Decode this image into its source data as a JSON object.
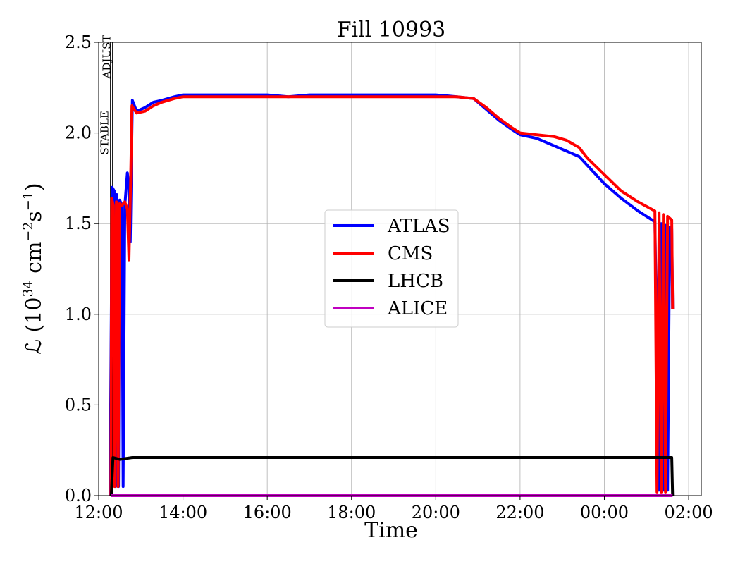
{
  "chart_data": {
    "type": "line",
    "title": "Fill 10993",
    "xlabel": "Time",
    "ylabel_main": "ℒ (10",
    "ylabel_exp1": "34",
    "ylabel_mid": " cm",
    "ylabel_exp2": "−2",
    "ylabel_mid2": "s",
    "ylabel_exp3": "−1",
    "ylabel_end": ")",
    "xlim_hours": [
      12.0,
      26.3
    ],
    "ylim": [
      0,
      2.5
    ],
    "x_ticks": [
      {
        "v": 12,
        "label": "12:00"
      },
      {
        "v": 14,
        "label": "14:00"
      },
      {
        "v": 16,
        "label": "16:00"
      },
      {
        "v": 18,
        "label": "18:00"
      },
      {
        "v": 20,
        "label": "20:00"
      },
      {
        "v": 22,
        "label": "22:00"
      },
      {
        "v": 24,
        "label": "00:00"
      },
      {
        "v": 26,
        "label": "02:00"
      }
    ],
    "y_ticks": [
      {
        "v": 0.0,
        "label": "0.0"
      },
      {
        "v": 0.5,
        "label": "0.5"
      },
      {
        "v": 1.0,
        "label": "1.0"
      },
      {
        "v": 1.5,
        "label": "1.5"
      },
      {
        "v": 2.0,
        "label": "2.0"
      },
      {
        "v": 2.5,
        "label": "2.5"
      }
    ],
    "grid": true,
    "legend_position": "center",
    "markers": [
      {
        "label": "ADJUST",
        "x": 12.33
      },
      {
        "label": "STABLE",
        "x": 12.28
      }
    ],
    "series": [
      {
        "name": "ATLAS",
        "color": "#0000ff",
        "points": [
          [
            12.27,
            0
          ],
          [
            12.3,
            1.0
          ],
          [
            12.32,
            1.7
          ],
          [
            12.37,
            1.68
          ],
          [
            12.4,
            0.05
          ],
          [
            12.43,
            1.66
          ],
          [
            12.47,
            0.05
          ],
          [
            12.5,
            1.63
          ],
          [
            12.55,
            1.6
          ],
          [
            12.58,
            0.05
          ],
          [
            12.62,
            1.6
          ],
          [
            12.68,
            1.78
          ],
          [
            12.72,
            1.7
          ],
          [
            12.75,
            1.4
          ],
          [
            12.8,
            2.18
          ],
          [
            12.9,
            2.12
          ],
          [
            13.1,
            2.14
          ],
          [
            13.3,
            2.17
          ],
          [
            13.5,
            2.18
          ],
          [
            13.8,
            2.2
          ],
          [
            14.0,
            2.21
          ],
          [
            14.5,
            2.21
          ],
          [
            15.0,
            2.21
          ],
          [
            15.5,
            2.21
          ],
          [
            16.0,
            2.21
          ],
          [
            16.5,
            2.2
          ],
          [
            17.0,
            2.21
          ],
          [
            17.5,
            2.21
          ],
          [
            18.0,
            2.21
          ],
          [
            18.5,
            2.21
          ],
          [
            19.0,
            2.21
          ],
          [
            19.5,
            2.21
          ],
          [
            20.0,
            2.21
          ],
          [
            20.5,
            2.2
          ],
          [
            20.9,
            2.19
          ],
          [
            21.2,
            2.13
          ],
          [
            21.5,
            2.07
          ],
          [
            21.8,
            2.02
          ],
          [
            22.0,
            1.99
          ],
          [
            22.4,
            1.97
          ],
          [
            22.8,
            1.93
          ],
          [
            23.1,
            1.9
          ],
          [
            23.4,
            1.87
          ],
          [
            23.6,
            1.82
          ],
          [
            24.0,
            1.72
          ],
          [
            24.4,
            1.64
          ],
          [
            24.8,
            1.57
          ],
          [
            25.2,
            1.51
          ],
          [
            25.3,
            0.03
          ],
          [
            25.35,
            1.5
          ],
          [
            25.4,
            0.03
          ],
          [
            25.45,
            1.49
          ],
          [
            25.5,
            0.03
          ],
          [
            25.55,
            1.48
          ],
          [
            25.6,
            1.47
          ],
          [
            25.62,
            1.03
          ]
        ]
      },
      {
        "name": "CMS",
        "color": "#ff0000",
        "points": [
          [
            12.29,
            0
          ],
          [
            12.31,
            1.64
          ],
          [
            12.35,
            1.6
          ],
          [
            12.38,
            0.05
          ],
          [
            12.42,
            1.62
          ],
          [
            12.46,
            0.05
          ],
          [
            12.5,
            1.61
          ],
          [
            12.55,
            1.6
          ],
          [
            12.62,
            1.62
          ],
          [
            12.68,
            1.58
          ],
          [
            12.72,
            1.3
          ],
          [
            12.76,
            1.75
          ],
          [
            12.79,
            2.15
          ],
          [
            12.9,
            2.11
          ],
          [
            13.1,
            2.12
          ],
          [
            13.3,
            2.15
          ],
          [
            13.5,
            2.17
          ],
          [
            13.8,
            2.19
          ],
          [
            14.0,
            2.2
          ],
          [
            14.5,
            2.2
          ],
          [
            15.0,
            2.2
          ],
          [
            15.5,
            2.2
          ],
          [
            16.0,
            2.2
          ],
          [
            16.5,
            2.2
          ],
          [
            17.0,
            2.2
          ],
          [
            17.5,
            2.2
          ],
          [
            18.0,
            2.2
          ],
          [
            18.5,
            2.2
          ],
          [
            19.0,
            2.2
          ],
          [
            19.5,
            2.2
          ],
          [
            20.0,
            2.2
          ],
          [
            20.5,
            2.2
          ],
          [
            20.9,
            2.19
          ],
          [
            21.2,
            2.14
          ],
          [
            21.5,
            2.08
          ],
          [
            21.8,
            2.03
          ],
          [
            22.0,
            2.0
          ],
          [
            22.4,
            1.99
          ],
          [
            22.8,
            1.98
          ],
          [
            23.1,
            1.96
          ],
          [
            23.4,
            1.92
          ],
          [
            23.6,
            1.86
          ],
          [
            24.0,
            1.77
          ],
          [
            24.4,
            1.68
          ],
          [
            24.8,
            1.62
          ],
          [
            25.2,
            1.57
          ],
          [
            25.25,
            0.02
          ],
          [
            25.3,
            1.56
          ],
          [
            25.35,
            0.02
          ],
          [
            25.4,
            1.55
          ],
          [
            25.45,
            0.02
          ],
          [
            25.5,
            1.54
          ],
          [
            25.55,
            1.53
          ],
          [
            25.6,
            1.52
          ],
          [
            25.62,
            1.03
          ]
        ]
      },
      {
        "name": "LHCB",
        "color": "#000000",
        "points": [
          [
            12.3,
            0
          ],
          [
            12.34,
            0.21
          ],
          [
            12.5,
            0.2
          ],
          [
            12.8,
            0.21
          ],
          [
            14.0,
            0.21
          ],
          [
            16.0,
            0.21
          ],
          [
            18.0,
            0.21
          ],
          [
            20.0,
            0.21
          ],
          [
            22.0,
            0.21
          ],
          [
            24.0,
            0.21
          ],
          [
            25.2,
            0.21
          ],
          [
            25.6,
            0.21
          ],
          [
            25.62,
            0.0
          ]
        ]
      },
      {
        "name": "ALICE",
        "color": "#c000c0",
        "points": [
          [
            12.3,
            0.0
          ],
          [
            25.62,
            0.0
          ]
        ]
      }
    ]
  }
}
